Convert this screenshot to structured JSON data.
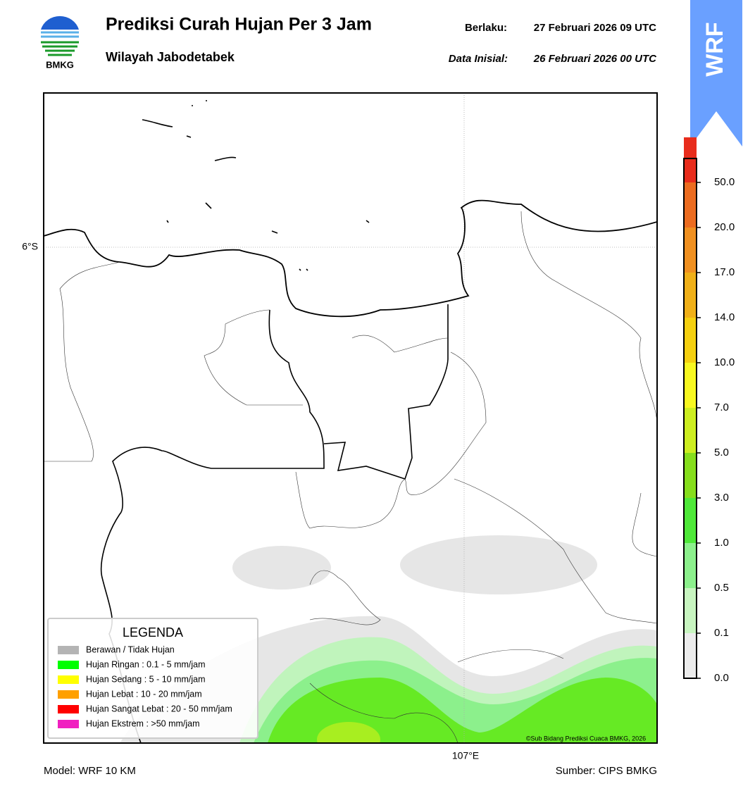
{
  "header": {
    "title": "Prediksi Curah Hujan Per 3 Jam",
    "subtitle": "Wilayah Jabodetabek",
    "valid_label": "Berlaku:",
    "valid": "27 Februari 2026 09 UTC",
    "init_label": "Data Inisial:",
    "init": "26 Februari 2026 00 UTC",
    "logo": "BMKG",
    "badge": "WRF"
  },
  "map": {
    "lat_label": "6°S",
    "lon_label": "107°E",
    "credit": "©Sub Bidang Prediksi Cuaca BMKG, 2026"
  },
  "legend": {
    "title": "LEGENDA",
    "items": [
      {
        "label": "Berawan / Tidak Hujan",
        "color": "#b4b4b4"
      },
      {
        "label": "Hujan Ringan : 0.1 - 5 mm/jam",
        "color": "#00ff00"
      },
      {
        "label": "Hujan Sedang : 5 - 10 mm/jam",
        "color": "#ffff00"
      },
      {
        "label": "Hujan Lebat : 10 - 20 mm/jam",
        "color": "#ffa000"
      },
      {
        "label": "Hujan Sangat Lebat : 20 - 50 mm/jam",
        "color": "#ff0000"
      },
      {
        "label": "Hujan Ekstrem : >50 mm/jam",
        "color": "#f020c0"
      }
    ]
  },
  "colorbar": {
    "ticks": [
      "0.0",
      "0.1",
      "0.5",
      "1.0",
      "3.0",
      "5.0",
      "7.0",
      "10.0",
      "14.0",
      "17.0",
      "20.0",
      "50.0"
    ],
    "colors": [
      "#ececec",
      "#c8f5c0",
      "#8cf08c",
      "#4ee838",
      "#86de1c",
      "#cdee20",
      "#f8f820",
      "#f5d010",
      "#f0b018",
      "#f09020",
      "#ec6c20",
      "#e82c1c",
      "#e020c0"
    ]
  },
  "footer": {
    "model": "Model: WRF 10 KM",
    "source": "Sumber: CIPS BMKG"
  }
}
